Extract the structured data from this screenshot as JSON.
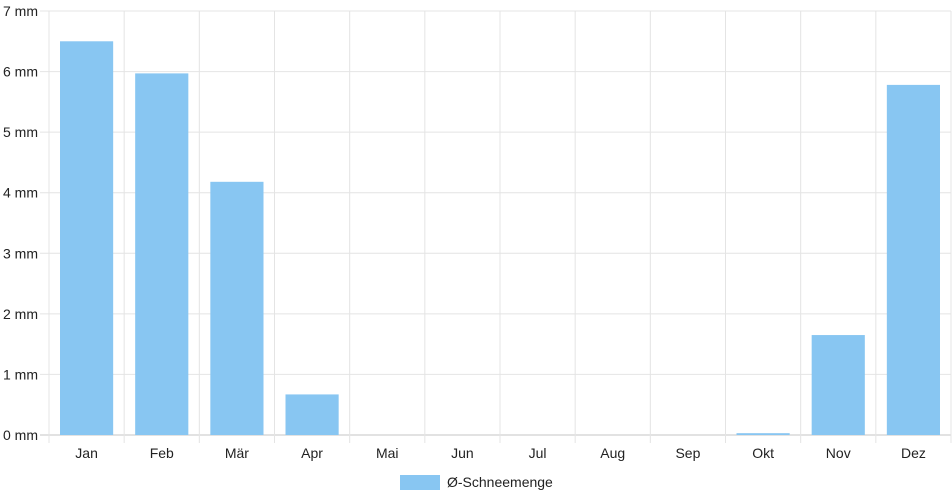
{
  "chart_data": {
    "type": "bar",
    "categories": [
      "Jan",
      "Feb",
      "Mär",
      "Apr",
      "Mai",
      "Jun",
      "Jul",
      "Aug",
      "Sep",
      "Okt",
      "Nov",
      "Dez"
    ],
    "series": [
      {
        "name": "Ø-Schneemenge",
        "values": [
          6.5,
          5.97,
          4.18,
          0.67,
          0,
          0,
          0,
          0,
          0,
          0.03,
          1.65,
          5.78
        ],
        "color": "#88c6f2"
      }
    ],
    "y_ticks": [
      "0 mm",
      "1 mm",
      "2 mm",
      "3 mm",
      "4 mm",
      "5 mm",
      "6 mm",
      "7 mm"
    ],
    "ylim": [
      0,
      7
    ],
    "grid": true,
    "legend_position": "bottom"
  }
}
